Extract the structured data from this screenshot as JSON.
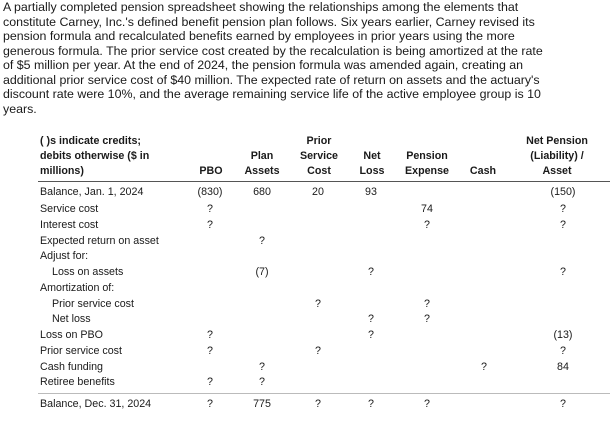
{
  "problem": {
    "lines": [
      "A partially completed pension spreadsheet showing the relationships among the elements that",
      "constitute Carney, Inc.'s defined benefit pension plan follows. Six years earlier, Carney revised its",
      "pension formula and recalculated benefits earned by employees in prior years using the more",
      "generous formula. The prior service cost created by the recalculation is being amortized at the rate",
      "of $5 million per year. At the end of 2024, the pension formula was amended again, creating an",
      "additional prior service cost of $40 million. The expected rate of return on assets and the actuary's",
      "discount rate were 10%, and the average remaining service life of the active employee group is 10",
      "years."
    ]
  },
  "worksheet": {
    "header_note": [
      "( )s indicate credits;",
      "debits otherwise ($ in",
      "millions)"
    ],
    "columns": {
      "pbo": [
        "PBO"
      ],
      "plan_assets": [
        "Plan",
        "Assets"
      ],
      "prior_service_cost": [
        "Prior",
        "Service",
        "Cost"
      ],
      "net_loss": [
        "Net",
        "Loss"
      ],
      "pension_expense": [
        "Pension",
        "Expense"
      ],
      "cash": [
        "Cash"
      ],
      "net_pension": [
        "Net Pension",
        "(Liability) /",
        "Asset"
      ]
    },
    "rows": [
      {
        "label": "Balance, Jan. 1, 2024",
        "indent": 0,
        "pbo": "(830)",
        "plan_assets": "680",
        "prior_service_cost": "20",
        "net_loss": "93",
        "pension_expense": "",
        "cash": "",
        "net_pension": "(150)"
      },
      {
        "label": "Service cost",
        "indent": 0,
        "pbo": "?",
        "plan_assets": "",
        "prior_service_cost": "",
        "net_loss": "",
        "pension_expense": "74",
        "cash": "",
        "net_pension": "?"
      },
      {
        "label": "Interest cost",
        "indent": 0,
        "pbo": "?",
        "plan_assets": "",
        "prior_service_cost": "",
        "net_loss": "",
        "pension_expense": "?",
        "cash": "",
        "net_pension": "?"
      },
      {
        "label": "Expected return on asset",
        "indent": 0,
        "pbo": "",
        "plan_assets": "?",
        "prior_service_cost": "",
        "net_loss": "",
        "pension_expense": "",
        "cash": "",
        "net_pension": ""
      },
      {
        "label": "Adjust for:",
        "indent": 0,
        "pbo": "",
        "plan_assets": "",
        "prior_service_cost": "",
        "net_loss": "",
        "pension_expense": "",
        "cash": "",
        "net_pension": ""
      },
      {
        "label": "Loss on assets",
        "indent": 1,
        "pbo": "",
        "plan_assets": "(7)",
        "prior_service_cost": "",
        "net_loss": "?",
        "pension_expense": "",
        "cash": "",
        "net_pension": "?"
      },
      {
        "label": "Amortization of:",
        "indent": 0,
        "pbo": "",
        "plan_assets": "",
        "prior_service_cost": "",
        "net_loss": "",
        "pension_expense": "",
        "cash": "",
        "net_pension": ""
      },
      {
        "label": "Prior service cost",
        "indent": 1,
        "pbo": "",
        "plan_assets": "",
        "prior_service_cost": "?",
        "net_loss": "",
        "pension_expense": "?",
        "cash": "",
        "net_pension": ""
      },
      {
        "label": "Net loss",
        "indent": 1,
        "pbo": "",
        "plan_assets": "",
        "prior_service_cost": "",
        "net_loss": "?",
        "pension_expense": "?",
        "cash": "",
        "net_pension": ""
      },
      {
        "label": "Loss on PBO",
        "indent": 0,
        "pbo": "?",
        "plan_assets": "",
        "prior_service_cost": "",
        "net_loss": "?",
        "pension_expense": "",
        "cash": "",
        "net_pension": "(13)"
      },
      {
        "label": "Prior service cost",
        "indent": 0,
        "pbo": "?",
        "plan_assets": "",
        "prior_service_cost": "?",
        "net_loss": "",
        "pension_expense": "",
        "cash": "",
        "net_pension": "?"
      },
      {
        "label": "Cash funding",
        "indent": 0,
        "pbo": "",
        "plan_assets": "?",
        "prior_service_cost": "",
        "net_loss": "",
        "pension_expense": "",
        "cash": "?",
        "net_pension": "84"
      },
      {
        "label": "Retiree benefits",
        "indent": 0,
        "pbo": "?",
        "plan_assets": "?",
        "prior_service_cost": "",
        "net_loss": "",
        "pension_expense": "",
        "cash": "",
        "net_pension": ""
      },
      {
        "label": "Balance, Dec. 31, 2024",
        "indent": 0,
        "pbo": "?",
        "plan_assets": "775",
        "prior_service_cost": "?",
        "net_loss": "?",
        "pension_expense": "?",
        "cash": "",
        "net_pension": "?"
      }
    ]
  }
}
